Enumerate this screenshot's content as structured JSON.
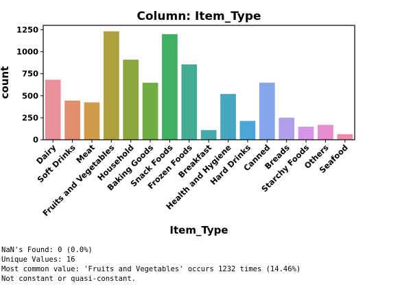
{
  "chart_data": {
    "type": "bar",
    "title": "Column: Item_Type",
    "xlabel": "Item_Type",
    "ylabel": "count",
    "ylim": [
      0,
      1300
    ],
    "yticks": [
      0,
      250,
      500,
      750,
      1000,
      1250
    ],
    "grid": false,
    "categories": [
      "Dairy",
      "Soft Drinks",
      "Meat",
      "Fruits and Vegetables",
      "Household",
      "Baking Goods",
      "Snack Foods",
      "Frozen Foods",
      "Breakfast",
      "Health and Hygiene",
      "Hard Drinks",
      "Canned",
      "Breads",
      "Starchy Foods",
      "Others",
      "Seafood"
    ],
    "values": [
      682,
      445,
      425,
      1232,
      910,
      648,
      1200,
      856,
      110,
      520,
      214,
      649,
      251,
      148,
      169,
      64
    ],
    "colors": [
      "#e8909b",
      "#e38d6d",
      "#cf9a4a",
      "#aea13c",
      "#8da63e",
      "#6fae43",
      "#41b060",
      "#43ad93",
      "#44aaaa",
      "#46a7c0",
      "#4aa6d6",
      "#85a6e8",
      "#b1a1ed",
      "#d894e6",
      "#e68ccf",
      "#ec8cb1"
    ]
  },
  "summary": [
    "NaN's Found: 0 (0.0%)",
    "Unique Values: 16",
    "Most common value: 'Fruits and Vegetables' occurs 1232 times (14.46%)",
    "Not constant or quasi-constant."
  ]
}
